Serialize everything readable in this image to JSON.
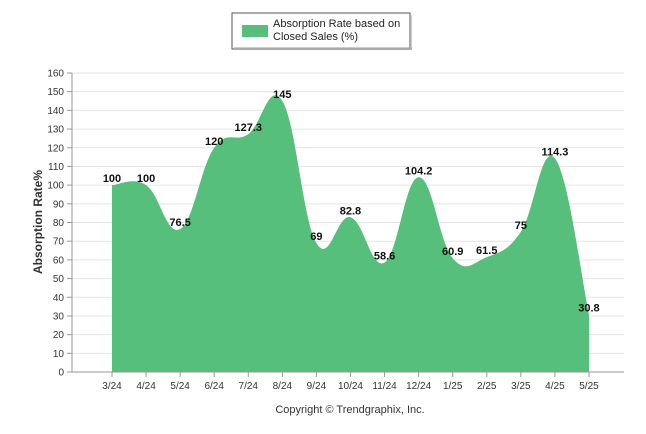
{
  "chart_data": {
    "type": "area",
    "categories": [
      "3/24",
      "4/24",
      "5/24",
      "6/24",
      "7/24",
      "8/24",
      "9/24",
      "10/24",
      "11/24",
      "12/24",
      "1/25",
      "2/25",
      "3/25",
      "4/25",
      "5/25"
    ],
    "series": [
      {
        "name": "Absorption Rate based on Closed Sales (%)",
        "values": [
          100,
          100,
          76.5,
          120,
          127.3,
          145,
          69,
          82.8,
          58.6,
          104.2,
          60.9,
          61.5,
          75,
          114.3,
          30.8
        ],
        "color": "#55bf7b"
      }
    ],
    "data_labels": [
      "100",
      "100",
      "76.5",
      "120",
      "127.3",
      "145",
      "69",
      "82.8",
      "58.6",
      "104.2",
      "60.9",
      "61.5",
      "75",
      "114.3",
      "30.8"
    ],
    "ylabel": "Absorption Rate%",
    "ylim": [
      0,
      160
    ],
    "yticks": [
      0,
      10,
      20,
      30,
      40,
      50,
      60,
      70,
      80,
      90,
      100,
      110,
      120,
      130,
      140,
      150,
      160
    ],
    "grid": true,
    "legend_position": "top-center"
  },
  "legend": {
    "label_line1": "Absorption Rate based on",
    "label_line2": "Closed Sales (%)"
  },
  "footer": {
    "text": "Copyright © Trendgraphix, Inc."
  }
}
